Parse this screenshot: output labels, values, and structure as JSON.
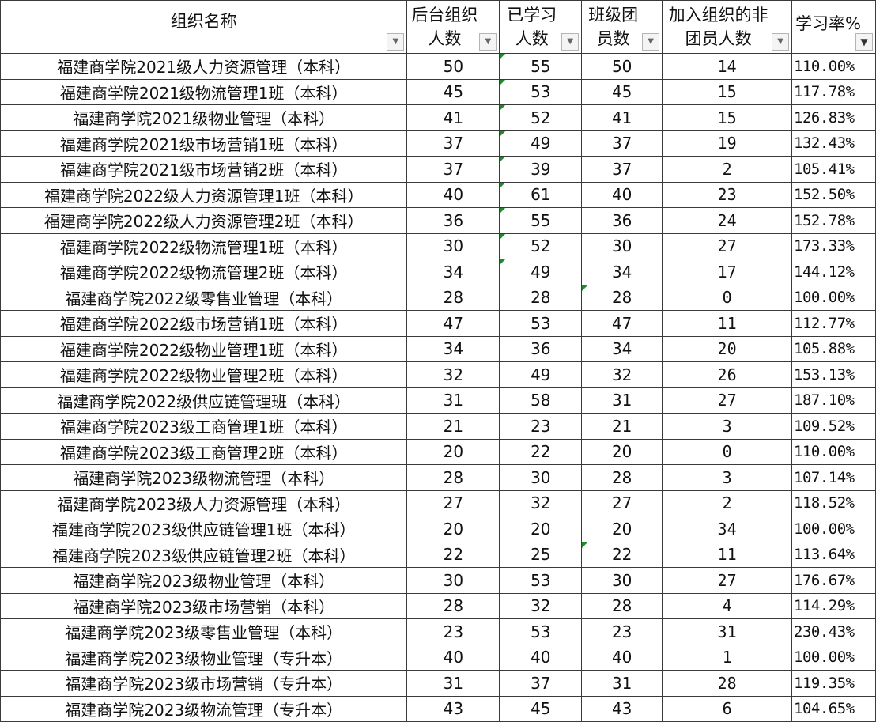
{
  "headers": [
    {
      "line1": "组织名称",
      "line2": ""
    },
    {
      "line1": "后台组织",
      "line2": "人数"
    },
    {
      "line1": "已学习",
      "line2": "人数"
    },
    {
      "line1": "班级团",
      "line2": "员数"
    },
    {
      "line1": "加入组织的非",
      "line2": "团员人数"
    },
    {
      "line1": "学习率%",
      "line2": ""
    }
  ],
  "filter_icons": [
    "dropdown-arrow",
    "dropdown-arrow",
    "dropdown-arrow",
    "dropdown-arrow",
    "dropdown-arrow",
    "filter-active"
  ],
  "error_indicator_color": "#1e8a2c",
  "rows": [
    [
      "福建商学院2021级人力资源管理（本科）",
      "50",
      "55",
      "50",
      "14",
      "110.00%"
    ],
    [
      "福建商学院2021级物流管理1班（本科）",
      "45",
      "53",
      "45",
      "15",
      "117.78%"
    ],
    [
      "福建商学院2021级物业管理（本科）",
      "41",
      "52",
      "41",
      "15",
      "126.83%"
    ],
    [
      "福建商学院2021级市场营销1班（本科）",
      "37",
      "49",
      "37",
      "19",
      "132.43%"
    ],
    [
      "福建商学院2021级市场营销2班（本科）",
      "37",
      "39",
      "37",
      "2",
      "105.41%"
    ],
    [
      "福建商学院2022级人力资源管理1班（本科）",
      "40",
      "61",
      "40",
      "23",
      "152.50%"
    ],
    [
      "福建商学院2022级人力资源管理2班（本科）",
      "36",
      "55",
      "36",
      "24",
      "152.78%"
    ],
    [
      "福建商学院2022级物流管理1班（本科）",
      "30",
      "52",
      "30",
      "27",
      "173.33%"
    ],
    [
      "福建商学院2022级物流管理2班（本科）",
      "34",
      "49",
      "34",
      "17",
      "144.12%"
    ],
    [
      "福建商学院2022级零售业管理（本科）",
      "28",
      "28",
      "28",
      "0",
      "100.00%"
    ],
    [
      "福建商学院2022级市场营销1班（本科）",
      "47",
      "53",
      "47",
      "11",
      "112.77%"
    ],
    [
      "福建商学院2022级物业管理1班（本科）",
      "34",
      "36",
      "34",
      "20",
      "105.88%"
    ],
    [
      "福建商学院2022级物业管理2班（本科）",
      "32",
      "49",
      "32",
      "26",
      "153.13%"
    ],
    [
      "福建商学院2022级供应链管理班（本科）",
      "31",
      "58",
      "31",
      "27",
      "187.10%"
    ],
    [
      "福建商学院2023级工商管理1班（本科）",
      "21",
      "23",
      "21",
      "3",
      "109.52%"
    ],
    [
      "福建商学院2023级工商管理2班（本科）",
      "20",
      "22",
      "20",
      "0",
      "110.00%"
    ],
    [
      "福建商学院2023级物流管理（本科）",
      "28",
      "30",
      "28",
      "3",
      "107.14%"
    ],
    [
      "福建商学院2023级人力资源管理（本科）",
      "27",
      "32",
      "27",
      "2",
      "118.52%"
    ],
    [
      "福建商学院2023级供应链管理1班（本科）",
      "20",
      "20",
      "20",
      "34",
      "100.00%"
    ],
    [
      "福建商学院2023级供应链管理2班（本科）",
      "22",
      "25",
      "22",
      "11",
      "113.64%"
    ],
    [
      "福建商学院2023级物业管理（本科）",
      "30",
      "53",
      "30",
      "27",
      "176.67%"
    ],
    [
      "福建商学院2023级市场营销（本科）",
      "28",
      "32",
      "28",
      "4",
      "114.29%"
    ],
    [
      "福建商学院2023级零售业管理（本科）",
      "23",
      "53",
      "23",
      "31",
      "230.43%"
    ],
    [
      "福建商学院2023级物业管理（专升本）",
      "40",
      "40",
      "40",
      "1",
      "100.00%"
    ],
    [
      "福建商学院2023级市场营销（专升本）",
      "31",
      "37",
      "31",
      "28",
      "119.35%"
    ],
    [
      "福建商学院2023级物流管理（专升本）",
      "43",
      "45",
      "43",
      "6",
      "104.65%"
    ]
  ],
  "error_indicators": {
    "col2_rows": [
      0,
      1,
      2,
      3,
      4,
      5,
      6,
      7,
      8
    ],
    "col3_rows": [
      9,
      19
    ]
  }
}
